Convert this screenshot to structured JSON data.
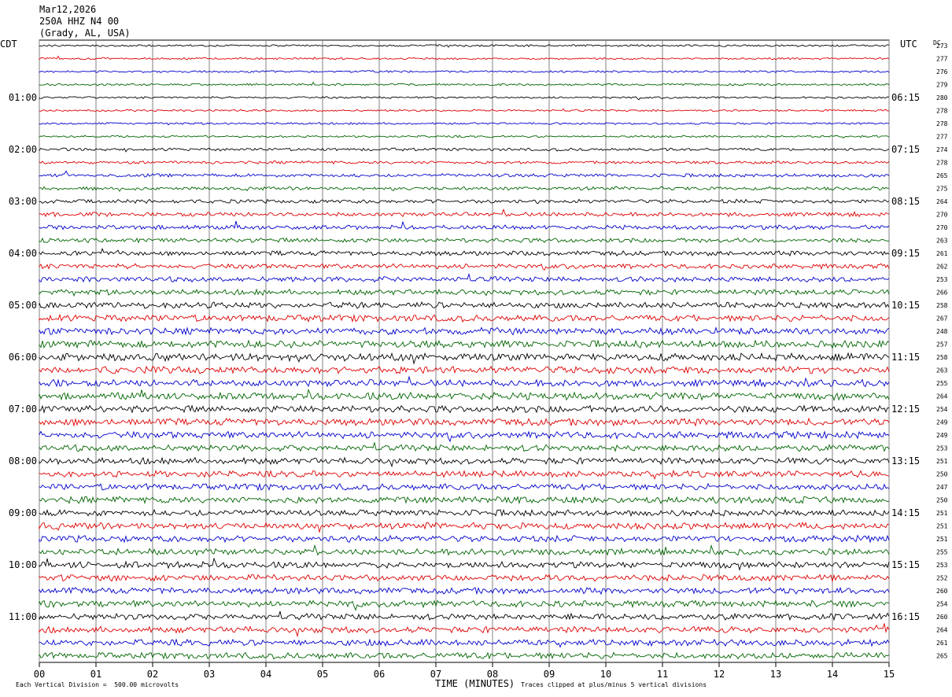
{
  "header": {
    "date": "Mar12,2026",
    "station": "250A HHZ N4 00",
    "location": "(Grady, AL, USA)"
  },
  "left_tz": "CDT",
  "right_tz": "UTC",
  "dc_header": "DC",
  "footer": {
    "scale_note": "Each Vertical Division =  500.00 microvolts",
    "xaxis_title": "TIME (MINUTES)",
    "clip_note": "Traces clipped at plus/minus 5 vertical divisions"
  },
  "colors": {
    "trace_cycle": [
      "#000000",
      "#dd0000",
      "#0000cc",
      "#006400"
    ],
    "grid": "#808080"
  },
  "chart_data": {
    "type": "line",
    "title": "",
    "xlabel": "TIME (MINUTES)",
    "x_ticks": [
      "00",
      "01",
      "02",
      "03",
      "04",
      "05",
      "06",
      "07",
      "08",
      "09",
      "10",
      "11",
      "12",
      "13",
      "14",
      "15"
    ],
    "xlim": [
      0,
      15
    ],
    "left_hour_labels": [
      "01:00",
      "02:00",
      "03:00",
      "04:00",
      "05:00",
      "06:00",
      "07:00",
      "08:00",
      "09:00",
      "10:00",
      "11:00"
    ],
    "right_hour_labels": [
      "06:15",
      "07:15",
      "08:15",
      "09:15",
      "10:15",
      "11:15",
      "12:15",
      "13:15",
      "14:15",
      "15:15",
      "16:15"
    ],
    "rows_per_hour": 4,
    "dc_offsets": [
      273,
      277,
      276,
      279,
      280,
      278,
      278,
      277,
      274,
      278,
      265,
      275,
      264,
      270,
      270,
      263,
      261,
      262,
      253,
      266,
      258,
      267,
      248,
      257,
      258,
      263,
      255,
      264,
      254,
      249,
      249,
      253,
      251,
      250,
      247,
      250,
      251,
      251,
      251,
      255,
      253,
      252,
      260,
      254,
      260,
      264,
      261,
      265
    ],
    "trace_amplitude_level": [
      1,
      1,
      1,
      1,
      1,
      1,
      1,
      1,
      1.4,
      1.4,
      1.6,
      1.6,
      1.9,
      2.0,
      2.1,
      2.1,
      2.3,
      2.4,
      2.5,
      2.6,
      2.9,
      3.2,
      3.3,
      3.5,
      3.6,
      3.4,
      3.3,
      3.5,
      3.2,
      3.4,
      3.3,
      3.1,
      3.1,
      3.0,
      3.0,
      3.2,
      3.0,
      3.1,
      3.1,
      3.0,
      3.0,
      3.1,
      3.0,
      3.1,
      3.0,
      3.0,
      3.0,
      3.0
    ]
  }
}
